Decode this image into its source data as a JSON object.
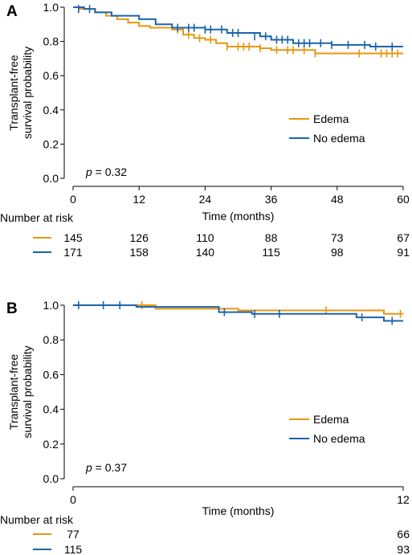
{
  "colors": {
    "edema": "#E8960F",
    "no_edema": "#1B64AC",
    "axis": "#000000"
  },
  "chart_data": [
    {
      "panel_label": "A",
      "type": "line",
      "subtype": "kaplan-meier",
      "ylabel": [
        "Transplant-free",
        "survival probability"
      ],
      "xlabel": "Time (months)",
      "xlim": [
        0,
        60
      ],
      "ylim": [
        0,
        1.0
      ],
      "xticks": [
        "0",
        "12",
        "24",
        "36",
        "48",
        "60"
      ],
      "xtick_values": [
        0,
        12,
        24,
        36,
        48,
        60
      ],
      "yticks": [
        "0.0",
        "0.2",
        "0.4",
        "0.6",
        "0.8",
        "1.0"
      ],
      "ytick_values": [
        0,
        0.2,
        0.4,
        0.6,
        0.8,
        1.0
      ],
      "legend_position": "right",
      "pvalue_label": "p",
      "pvalue_text": " = 0.32",
      "series": [
        {
          "name": "Edema",
          "color_key": "edema",
          "steps": [
            [
              0,
              1.0
            ],
            [
              1,
              0.99
            ],
            [
              4,
              0.97
            ],
            [
              6,
              0.95
            ],
            [
              8,
              0.93
            ],
            [
              10,
              0.91
            ],
            [
              12,
              0.89
            ],
            [
              14,
              0.88
            ],
            [
              18,
              0.87
            ],
            [
              20,
              0.84
            ],
            [
              22,
              0.82
            ],
            [
              24,
              0.81
            ],
            [
              26,
              0.79
            ],
            [
              28,
              0.77
            ],
            [
              34,
              0.76
            ],
            [
              36,
              0.75
            ],
            [
              44,
              0.73
            ],
            [
              60,
              0.73
            ]
          ],
          "censored": [
            [
              19,
              0.87
            ],
            [
              21,
              0.84
            ],
            [
              23,
              0.82
            ],
            [
              25,
              0.81
            ],
            [
              28,
              0.77
            ],
            [
              30,
              0.77
            ],
            [
              31,
              0.77
            ],
            [
              32,
              0.77
            ],
            [
              34,
              0.76
            ],
            [
              37,
              0.75
            ],
            [
              39,
              0.75
            ],
            [
              40,
              0.75
            ],
            [
              42,
              0.75
            ],
            [
              44,
              0.73
            ],
            [
              52,
              0.73
            ],
            [
              56,
              0.73
            ],
            [
              57,
              0.73
            ],
            [
              58,
              0.73
            ],
            [
              59,
              0.73
            ]
          ]
        },
        {
          "name": "No edema",
          "color_key": "no_edema",
          "steps": [
            [
              0,
              1.0
            ],
            [
              2,
              0.99
            ],
            [
              4,
              0.97
            ],
            [
              7,
              0.95
            ],
            [
              12,
              0.93
            ],
            [
              15,
              0.9
            ],
            [
              18,
              0.88
            ],
            [
              24,
              0.87
            ],
            [
              28,
              0.85
            ],
            [
              34,
              0.83
            ],
            [
              36,
              0.81
            ],
            [
              40,
              0.79
            ],
            [
              47,
              0.78
            ],
            [
              54,
              0.77
            ],
            [
              60,
              0.77
            ]
          ],
          "censored": [
            [
              1,
              0.99
            ],
            [
              3,
              0.99
            ],
            [
              19,
              0.88
            ],
            [
              21,
              0.88
            ],
            [
              22,
              0.88
            ],
            [
              24,
              0.87
            ],
            [
              25,
              0.87
            ],
            [
              27,
              0.87
            ],
            [
              29,
              0.85
            ],
            [
              30,
              0.85
            ],
            [
              33,
              0.83
            ],
            [
              35,
              0.83
            ],
            [
              37,
              0.81
            ],
            [
              38,
              0.81
            ],
            [
              39,
              0.81
            ],
            [
              41,
              0.79
            ],
            [
              42,
              0.79
            ],
            [
              43,
              0.79
            ],
            [
              45,
              0.79
            ],
            [
              47,
              0.78
            ],
            [
              50,
              0.78
            ],
            [
              53,
              0.78
            ],
            [
              55,
              0.77
            ],
            [
              58,
              0.77
            ]
          ]
        }
      ],
      "risk_table": {
        "title": "Number at risk",
        "rows": [
          {
            "color_key": "edema",
            "values": [
              "145",
              "126",
              "110",
              "88",
              "73",
              "67"
            ]
          },
          {
            "color_key": "no_edema",
            "values": [
              "171",
              "158",
              "140",
              "115",
              "98",
              "91"
            ]
          }
        ]
      }
    },
    {
      "panel_label": "B",
      "type": "line",
      "subtype": "kaplan-meier",
      "ylabel": [
        "Transplant-free",
        "survival probability"
      ],
      "xlabel": "Time (months)",
      "xlim": [
        0,
        12
      ],
      "ylim": [
        0,
        1.0
      ],
      "xticks": [
        "0",
        "12"
      ],
      "xtick_values": [
        0,
        12
      ],
      "yticks": [
        "0.0",
        "0.2",
        "0.4",
        "0.6",
        "0.8",
        "1.0"
      ],
      "ytick_values": [
        0,
        0.2,
        0.4,
        0.6,
        0.8,
        1.0
      ],
      "legend_position": "right",
      "pvalue_label": "p",
      "pvalue_text": " = 0.37",
      "series": [
        {
          "name": "Edema",
          "color_key": "edema",
          "steps": [
            [
              0,
              1.0
            ],
            [
              3.0,
              0.98
            ],
            [
              6.0,
              0.97
            ],
            [
              11.3,
              0.95
            ],
            [
              12,
              0.95
            ]
          ],
          "censored": [
            [
              2.5,
              1.0
            ],
            [
              9.2,
              0.97
            ],
            [
              11.9,
              0.95
            ]
          ]
        },
        {
          "name": "No edema",
          "color_key": "no_edema",
          "steps": [
            [
              0,
              1.0
            ],
            [
              2.3,
              0.99
            ],
            [
              5.3,
              0.96
            ],
            [
              6.5,
              0.95
            ],
            [
              10.3,
              0.93
            ],
            [
              11.3,
              0.91
            ],
            [
              12,
              0.91
            ]
          ],
          "censored": [
            [
              0.2,
              1.0
            ],
            [
              1.1,
              1.0
            ],
            [
              1.7,
              1.0
            ],
            [
              5.5,
              0.96
            ],
            [
              6.6,
              0.95
            ],
            [
              7.5,
              0.95
            ],
            [
              10.5,
              0.93
            ],
            [
              11.6,
              0.91
            ]
          ]
        }
      ],
      "risk_table": {
        "title": "Number at risk",
        "rows": [
          {
            "color_key": "edema",
            "values": [
              "77",
              "66"
            ]
          },
          {
            "color_key": "no_edema",
            "values": [
              "115",
              "93"
            ]
          }
        ]
      }
    }
  ]
}
